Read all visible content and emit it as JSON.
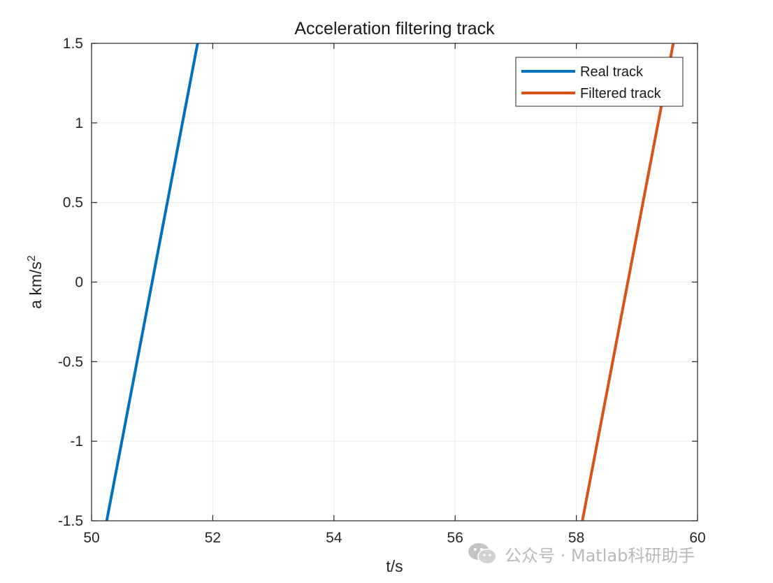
{
  "chart_data": {
    "type": "line",
    "title": "Acceleration filtering track",
    "xlabel": "t/s",
    "ylabel_base": "a km/s",
    "ylabel_sup": "2",
    "xlim": [
      50,
      60
    ],
    "ylim": [
      -1.5,
      1.5
    ],
    "xticks": [
      50,
      52,
      54,
      56,
      58,
      60
    ],
    "yticks": [
      -1.5,
      -1,
      -0.5,
      0,
      0.5,
      1,
      1.5
    ],
    "ytick_labels": [
      "-1.5",
      "-1",
      "-0.5",
      "0",
      "0.5",
      "1",
      "1.5"
    ],
    "grid": true,
    "legend_position": "top-right",
    "series": [
      {
        "name": "Real track",
        "color": "#0072BD",
        "x": [
          50.25,
          51.75
        ],
        "y": [
          -1.5,
          1.5
        ]
      },
      {
        "name": "Filtered track",
        "color": "#D95319",
        "x": [
          58.1,
          59.6
        ],
        "y": [
          -1.5,
          1.5
        ]
      }
    ]
  },
  "watermark": {
    "icon": "wechat-icon",
    "text": "公众号 · Matlab科研助手"
  }
}
